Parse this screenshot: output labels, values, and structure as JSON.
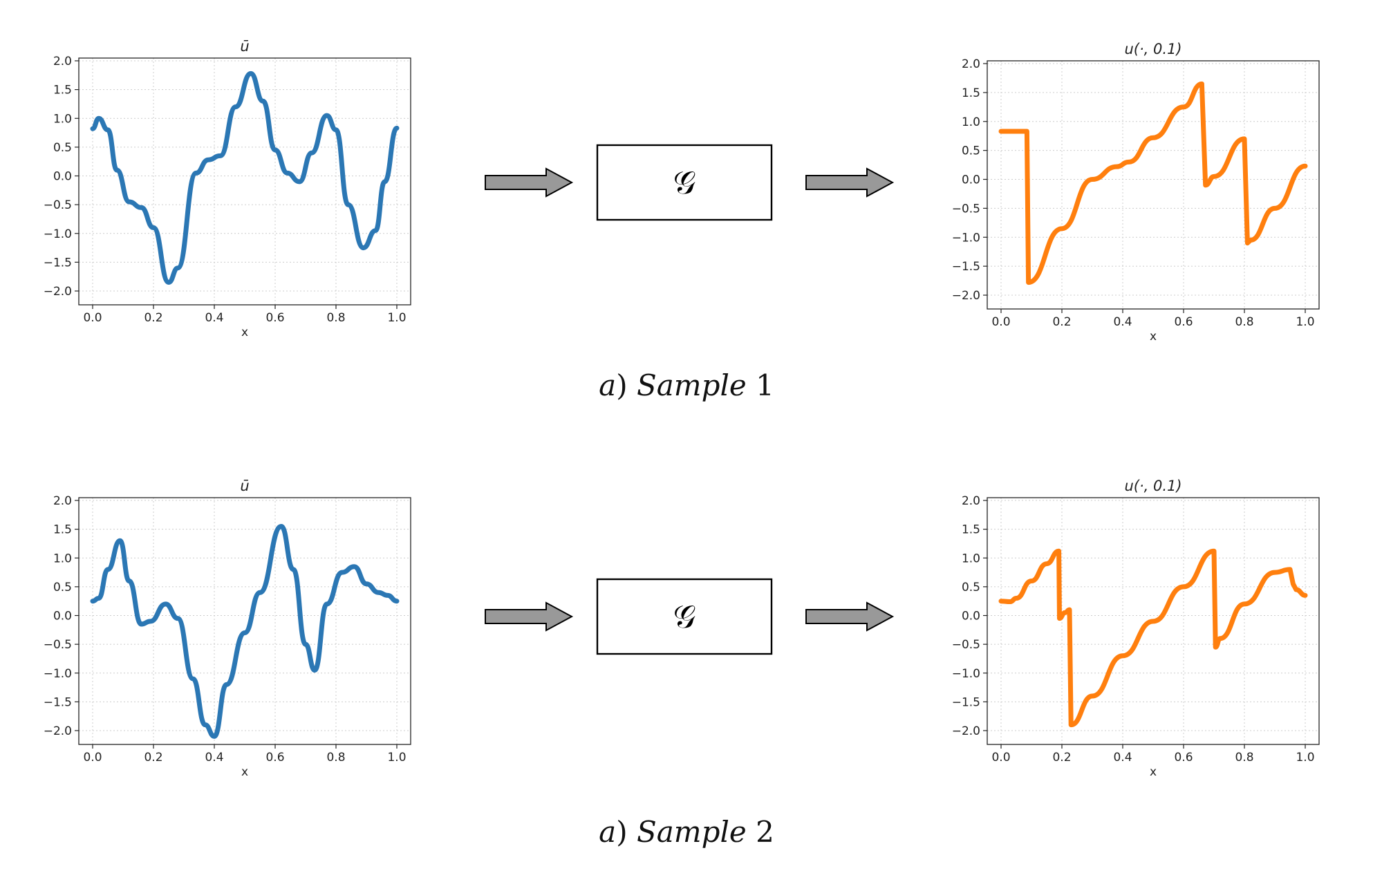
{
  "samples": [
    {
      "caption": {
        "letter": "a",
        "word": "Sample",
        "number": "1"
      },
      "operator": "𝒢",
      "input_plot": {
        "title": "ū",
        "xlabel": "x",
        "xticks": [
          "0.0",
          "0.2",
          "0.4",
          "0.6",
          "0.8",
          "1.0"
        ],
        "yticks": [
          "−2.0",
          "−1.5",
          "−1.0",
          "−0.5",
          "0.0",
          "0.5",
          "1.0",
          "1.5",
          "2.0"
        ]
      },
      "output_plot": {
        "title": "u(·, 0.1)",
        "xlabel": "x",
        "xticks": [
          "0.0",
          "0.2",
          "0.4",
          "0.6",
          "0.8",
          "1.0"
        ],
        "yticks": [
          "−2.0",
          "−1.5",
          "−1.0",
          "−0.5",
          "0.0",
          "0.5",
          "1.0",
          "1.5",
          "2.0"
        ]
      }
    },
    {
      "caption": {
        "letter": "a",
        "word": "Sample",
        "number": "2"
      },
      "operator": "𝒢",
      "input_plot": {
        "title": "ū",
        "xlabel": "x",
        "xticks": [
          "0.0",
          "0.2",
          "0.4",
          "0.6",
          "0.8",
          "1.0"
        ],
        "yticks": [
          "−2.0",
          "−1.5",
          "−1.0",
          "−0.5",
          "0.0",
          "0.5",
          "1.0",
          "1.5",
          "2.0"
        ]
      },
      "output_plot": {
        "title": "u(·, 0.1)",
        "xlabel": "x",
        "xticks": [
          "0.0",
          "0.2",
          "0.4",
          "0.6",
          "0.8",
          "1.0"
        ],
        "yticks": [
          "−2.0",
          "−1.5",
          "−1.0",
          "−0.5",
          "0.0",
          "0.5",
          "1.0",
          "1.5",
          "2.0"
        ]
      }
    }
  ],
  "colors": {
    "input_line": "#2b77b4",
    "output_line": "#ff7f0e",
    "arrow_fill": "#999999",
    "grid": "#cccccc"
  },
  "chart_data": [
    {
      "type": "line",
      "xlim": [
        0,
        1
      ],
      "ylim": [
        -2.0,
        2.0
      ],
      "grid": true,
      "x": [
        0,
        0.02,
        0.05,
        0.08,
        0.12,
        0.16,
        0.2,
        0.25,
        0.28,
        0.34,
        0.38,
        0.42,
        0.47,
        0.52,
        0.56,
        0.6,
        0.64,
        0.68,
        0.72,
        0.77,
        0.8,
        0.84,
        0.89,
        0.93,
        0.96,
        1.0
      ],
      "y": [
        0.82,
        1.0,
        0.8,
        0.1,
        -0.45,
        -0.55,
        -0.9,
        -1.85,
        -1.6,
        0.05,
        0.28,
        0.35,
        1.2,
        1.78,
        1.3,
        0.45,
        0.05,
        -0.1,
        0.4,
        1.05,
        0.8,
        -0.5,
        -1.25,
        -0.95,
        -0.1,
        0.83
      ]
    },
    {
      "type": "line",
      "xlim": [
        0,
        1
      ],
      "ylim": [
        -2.0,
        2.0
      ],
      "grid": true,
      "x": [
        0,
        0.085,
        0.09,
        0.2,
        0.3,
        0.38,
        0.42,
        0.5,
        0.6,
        0.66,
        0.672,
        0.7,
        0.8,
        0.81,
        0.82,
        0.9,
        1.0
      ],
      "y": [
        0.83,
        0.83,
        -1.78,
        -0.85,
        0.0,
        0.22,
        0.3,
        0.72,
        1.25,
        1.65,
        -0.1,
        0.05,
        0.7,
        -1.1,
        -1.05,
        -0.5,
        0.23
      ]
    },
    {
      "type": "line",
      "xlim": [
        0,
        1
      ],
      "ylim": [
        -2.0,
        2.0
      ],
      "grid": true,
      "x": [
        0,
        0.02,
        0.05,
        0.09,
        0.12,
        0.16,
        0.19,
        0.24,
        0.28,
        0.33,
        0.37,
        0.4,
        0.44,
        0.5,
        0.55,
        0.62,
        0.66,
        0.7,
        0.73,
        0.77,
        0.82,
        0.86,
        0.9,
        0.94,
        0.97,
        1.0
      ],
      "y": [
        0.25,
        0.3,
        0.8,
        1.3,
        0.6,
        -0.15,
        -0.1,
        0.2,
        -0.05,
        -1.1,
        -1.9,
        -2.1,
        -1.2,
        -0.3,
        0.4,
        1.55,
        0.8,
        -0.5,
        -0.95,
        0.2,
        0.75,
        0.85,
        0.55,
        0.4,
        0.35,
        0.25
      ]
    },
    {
      "type": "line",
      "xlim": [
        0,
        1
      ],
      "ylim": [
        -2.0,
        2.0
      ],
      "grid": true,
      "x": [
        0,
        0.03,
        0.05,
        0.1,
        0.15,
        0.19,
        0.192,
        0.21,
        0.225,
        0.23,
        0.3,
        0.4,
        0.5,
        0.6,
        0.7,
        0.705,
        0.72,
        0.8,
        0.9,
        0.95,
        0.96,
        0.97,
        1.0
      ],
      "y": [
        0.25,
        0.24,
        0.3,
        0.6,
        0.9,
        1.12,
        -0.05,
        0.05,
        0.1,
        -1.9,
        -1.4,
        -0.7,
        -0.1,
        0.5,
        1.12,
        -0.55,
        -0.4,
        0.2,
        0.75,
        0.8,
        0.55,
        0.45,
        0.35
      ]
    }
  ]
}
